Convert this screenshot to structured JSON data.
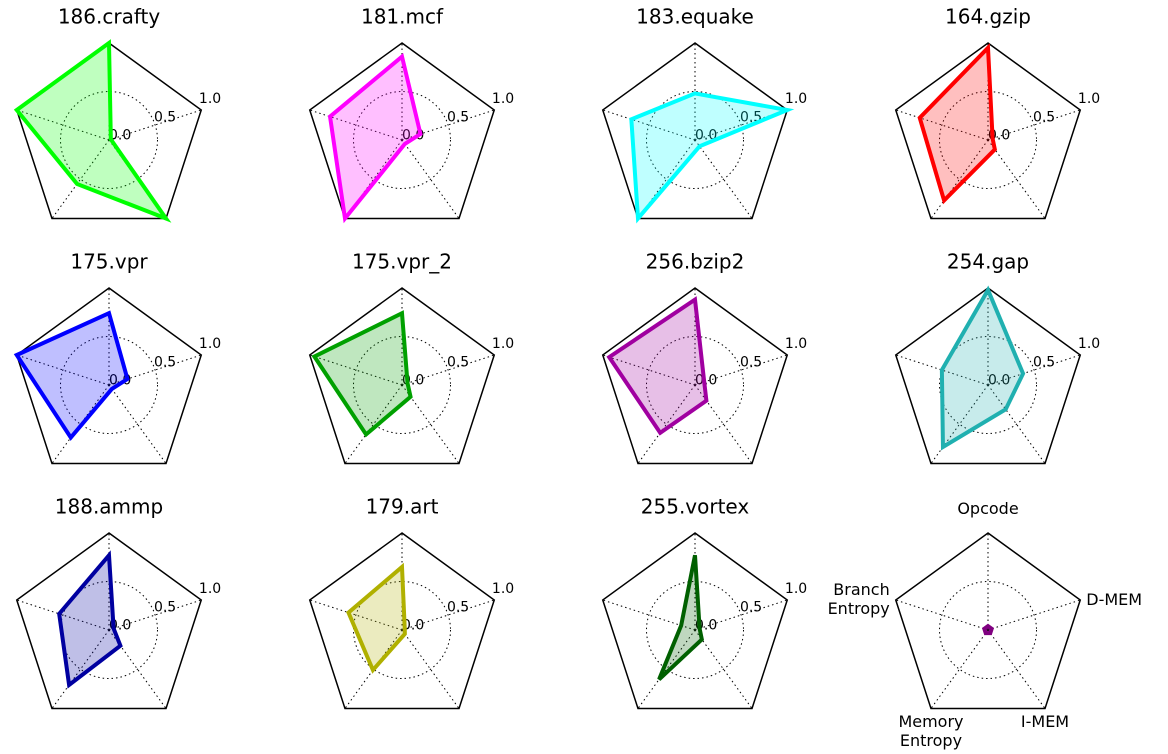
{
  "chart_data": [
    {
      "type": "radar",
      "title": "186.crafty",
      "values": [
        1.0,
        0.02,
        1.0,
        0.56,
        1.0
      ],
      "color": "#00ff00",
      "rlim": [
        0,
        1
      ],
      "rticks": [
        {
          "value": 0,
          "label": "0.0"
        },
        0.5,
        {
          "value": 1,
          "label": "1.0"
        }
      ]
    },
    {
      "type": "radar",
      "title": "181.mcf",
      "values": [
        0.86,
        0.2,
        0.05,
        1.0,
        0.78
      ],
      "color": "#ff00ff",
      "rlim": [
        0,
        1
      ],
      "rticks": [
        {
          "value": 0,
          "label": "0.0"
        },
        0.5,
        {
          "value": 1,
          "label": "1.0"
        }
      ]
    },
    {
      "type": "radar",
      "title": "183.equake",
      "values": [
        0.48,
        1.0,
        0.08,
        1.0,
        0.69
      ],
      "color": "#00ffff",
      "rlim": [
        0,
        1
      ],
      "rticks": [
        {
          "value": 0,
          "label": "0.0"
        },
        0.5,
        {
          "value": 1,
          "label": "1.0"
        }
      ]
    },
    {
      "type": "radar",
      "title": "164.gzip",
      "values": [
        0.95,
        0.05,
        0.12,
        0.77,
        0.74
      ],
      "color": "#ff0000",
      "rlim": [
        0,
        1
      ],
      "rticks": [
        {
          "value": 0,
          "label": "0.0"
        },
        0.5,
        {
          "value": 1,
          "label": "1.0"
        }
      ]
    },
    {
      "type": "radar",
      "title": "175.vpr",
      "values": [
        0.74,
        0.2,
        0.05,
        0.67,
        1.0
      ],
      "color": "#0000ff",
      "rlim": [
        0,
        1
      ],
      "rticks": [
        {
          "value": 0,
          "label": "0.0"
        },
        0.5,
        {
          "value": 1,
          "label": "1.0"
        }
      ]
    },
    {
      "type": "radar",
      "title": "175.vpr_2",
      "values": [
        0.74,
        0.06,
        0.15,
        0.63,
        0.95
      ],
      "color": "#00a000",
      "rlim": [
        0,
        1
      ],
      "rticks": [
        {
          "value": 0,
          "label": "0.0"
        },
        0.5,
        {
          "value": 1,
          "label": "1.0"
        }
      ]
    },
    {
      "type": "radar",
      "title": "256.bzip2",
      "values": [
        0.88,
        0.1,
        0.2,
        0.61,
        0.93
      ],
      "color": "#a000a0",
      "rlim": [
        0,
        1
      ],
      "rticks": [
        {
          "value": 0,
          "label": "0.0"
        },
        0.5,
        {
          "value": 1,
          "label": "1.0"
        }
      ]
    },
    {
      "type": "radar",
      "title": "254.gap",
      "values": [
        0.98,
        0.38,
        0.31,
        0.79,
        0.5
      ],
      "color": "#20b0b0",
      "rlim": [
        0,
        1
      ],
      "rticks": [
        {
          "value": 0,
          "label": "0.0"
        },
        0.5,
        {
          "value": 1,
          "label": "1.0"
        }
      ]
    },
    {
      "type": "radar",
      "title": "188.ammp",
      "values": [
        0.77,
        0.05,
        0.2,
        0.7,
        0.54
      ],
      "color": "#0000a0",
      "rlim": [
        0,
        1
      ],
      "rticks": [
        {
          "value": 0,
          "label": "0.0"
        },
        0.5,
        {
          "value": 1,
          "label": "1.0"
        }
      ]
    },
    {
      "type": "radar",
      "title": "179.art",
      "values": [
        0.65,
        0.03,
        0.05,
        0.51,
        0.58
      ],
      "color": "#b0b000",
      "rlim": [
        0,
        1
      ],
      "rticks": [
        {
          "value": 0,
          "label": "0.0"
        },
        0.5,
        {
          "value": 1,
          "label": "1.0"
        }
      ]
    },
    {
      "type": "radar",
      "title": "255.vortex",
      "values": [
        0.77,
        0.05,
        0.12,
        0.63,
        0.15
      ],
      "color": "#006000",
      "rlim": [
        0,
        1
      ],
      "rticks": [
        {
          "value": 0,
          "label": "0.0"
        },
        0.5,
        {
          "value": 1,
          "label": "1.0"
        }
      ]
    },
    {
      "type": "radar",
      "categories": [
        "Opcode",
        "D-MEM",
        "I-MEM",
        "Memory Entropy",
        "Branch Entropy"
      ],
      "values": [
        0.04,
        0.04,
        0.04,
        0.04,
        0.04
      ],
      "color": "#800080",
      "rlim": [
        0,
        1
      ]
    }
  ]
}
